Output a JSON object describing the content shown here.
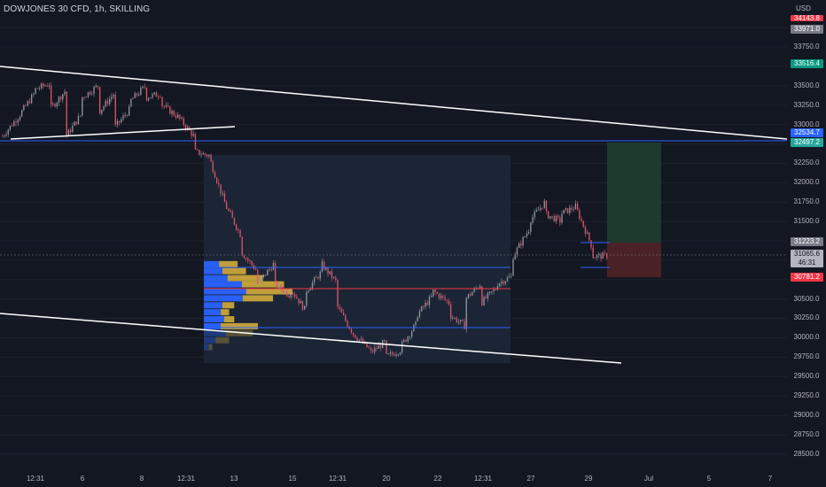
{
  "header": {
    "symbol": "DOWJONES 30 CFD, 1h, SKILLING",
    "currency": "USD"
  },
  "price_axis": {
    "ticks": [
      "33750.0",
      "33500.0",
      "33250.0",
      "33000.0",
      "32750.0",
      "32500.0",
      "32250.0",
      "32000.0",
      "31750.0",
      "31500.0",
      "31250.0",
      "31000.0",
      "30750.0",
      "30500.0",
      "30250.0",
      "30000.0",
      "29750.0",
      "29500.0",
      "29250.0",
      "29000.0",
      "28750.0",
      "28500.0"
    ],
    "tags": [
      {
        "label": "34143.8",
        "color": "#f23645"
      },
      {
        "label": "33971.0",
        "color": "#787b86"
      },
      {
        "label": "33516.4",
        "color": "#089981"
      },
      {
        "label": "32534.7",
        "color": "#2962ff"
      },
      {
        "label": "32497.2",
        "color": "#26a69a"
      },
      {
        "label": "31223.2",
        "color": "#787b86"
      },
      {
        "label": "30781.2",
        "color": "#f23645"
      }
    ],
    "current_price": "31065.6",
    "countdown": "46:31"
  },
  "time_axis": {
    "ticks": [
      "12:31",
      "6",
      "8",
      "12:31",
      "13",
      "15",
      "12:31",
      "20",
      "22",
      "12:31",
      "27",
      "29",
      "Jul",
      "5",
      "7"
    ]
  },
  "colors": {
    "background": "#131722",
    "candle_up": "#9598a1",
    "candle_down": "#e0546a",
    "trendline": "#ffffff",
    "horizontal_line": "#2962ff",
    "poc_line": "#f23645",
    "volume_up": "#2962ff",
    "volume_down": "#c9a43a",
    "stop_zone": "#f23645",
    "target_zone": "#089981"
  },
  "chart_data": {
    "type": "candlestick",
    "symbol": "DOWJONES 30 CFD",
    "timeframe": "1h",
    "ylim": [
      28400,
      34200
    ],
    "key_levels": {
      "blue_horizontal": 32534.7,
      "value_area_high": 30950,
      "point_of_control": 30640,
      "value_area_low": 30115,
      "position_entry": 31065.6,
      "position_stop_top": 31223.2,
      "position_stop_bottom": 30781.2,
      "target_top": 32520
    },
    "volume_profile": [
      {
        "price": 30950,
        "up": 18,
        "down": 22
      },
      {
        "price": 30860,
        "up": 22,
        "down": 28
      },
      {
        "price": 30770,
        "up": 28,
        "down": 42
      },
      {
        "price": 30690,
        "up": 45,
        "down": 50
      },
      {
        "price": 30600,
        "up": 50,
        "down": 55
      },
      {
        "price": 30510,
        "up": 46,
        "down": 36
      },
      {
        "price": 30420,
        "up": 22,
        "down": 14
      },
      {
        "price": 30330,
        "up": 20,
        "down": 10
      },
      {
        "price": 30240,
        "up": 24,
        "down": 12
      },
      {
        "price": 30150,
        "up": 20,
        "down": 44
      },
      {
        "price": 30060,
        "up": 26,
        "down": 32
      },
      {
        "price": 29970,
        "up": 14,
        "down": 16
      },
      {
        "price": 29880,
        "up": 6,
        "down": 4
      }
    ],
    "price_path": [
      [
        32600,
        32850
      ],
      [
        32850,
        33150
      ],
      [
        33200,
        33280
      ],
      [
        32950,
        33200
      ],
      [
        32600,
        32900
      ],
      [
        33100,
        33250
      ],
      [
        32900,
        33150
      ],
      [
        32700,
        32950
      ],
      [
        33050,
        33250
      ],
      [
        33100,
        33150
      ],
      [
        33000,
        32850
      ],
      [
        32850,
        32600
      ],
      [
        32400,
        32350
      ],
      [
        32300,
        31700
      ],
      [
        31700,
        31300
      ],
      [
        31100,
        30850
      ],
      [
        30700,
        30950
      ],
      [
        30700,
        30550
      ],
      [
        30650,
        30350
      ],
      [
        30600,
        30850
      ],
      [
        30950,
        30700
      ],
      [
        30400,
        30050
      ],
      [
        30050,
        29850
      ],
      [
        29800,
        29950
      ],
      [
        29750,
        29850
      ],
      [
        29900,
        30200
      ],
      [
        30300,
        30550
      ],
      [
        30600,
        30450
      ],
      [
        30300,
        30150
      ],
      [
        30500,
        30700
      ],
      [
        30450,
        30650
      ],
      [
        30700,
        30800
      ],
      [
        31050,
        31400
      ],
      [
        31500,
        31750
      ],
      [
        31600,
        31500
      ],
      [
        31600,
        31700
      ],
      [
        31650,
        31150
      ],
      [
        31050,
        31060
      ]
    ]
  }
}
